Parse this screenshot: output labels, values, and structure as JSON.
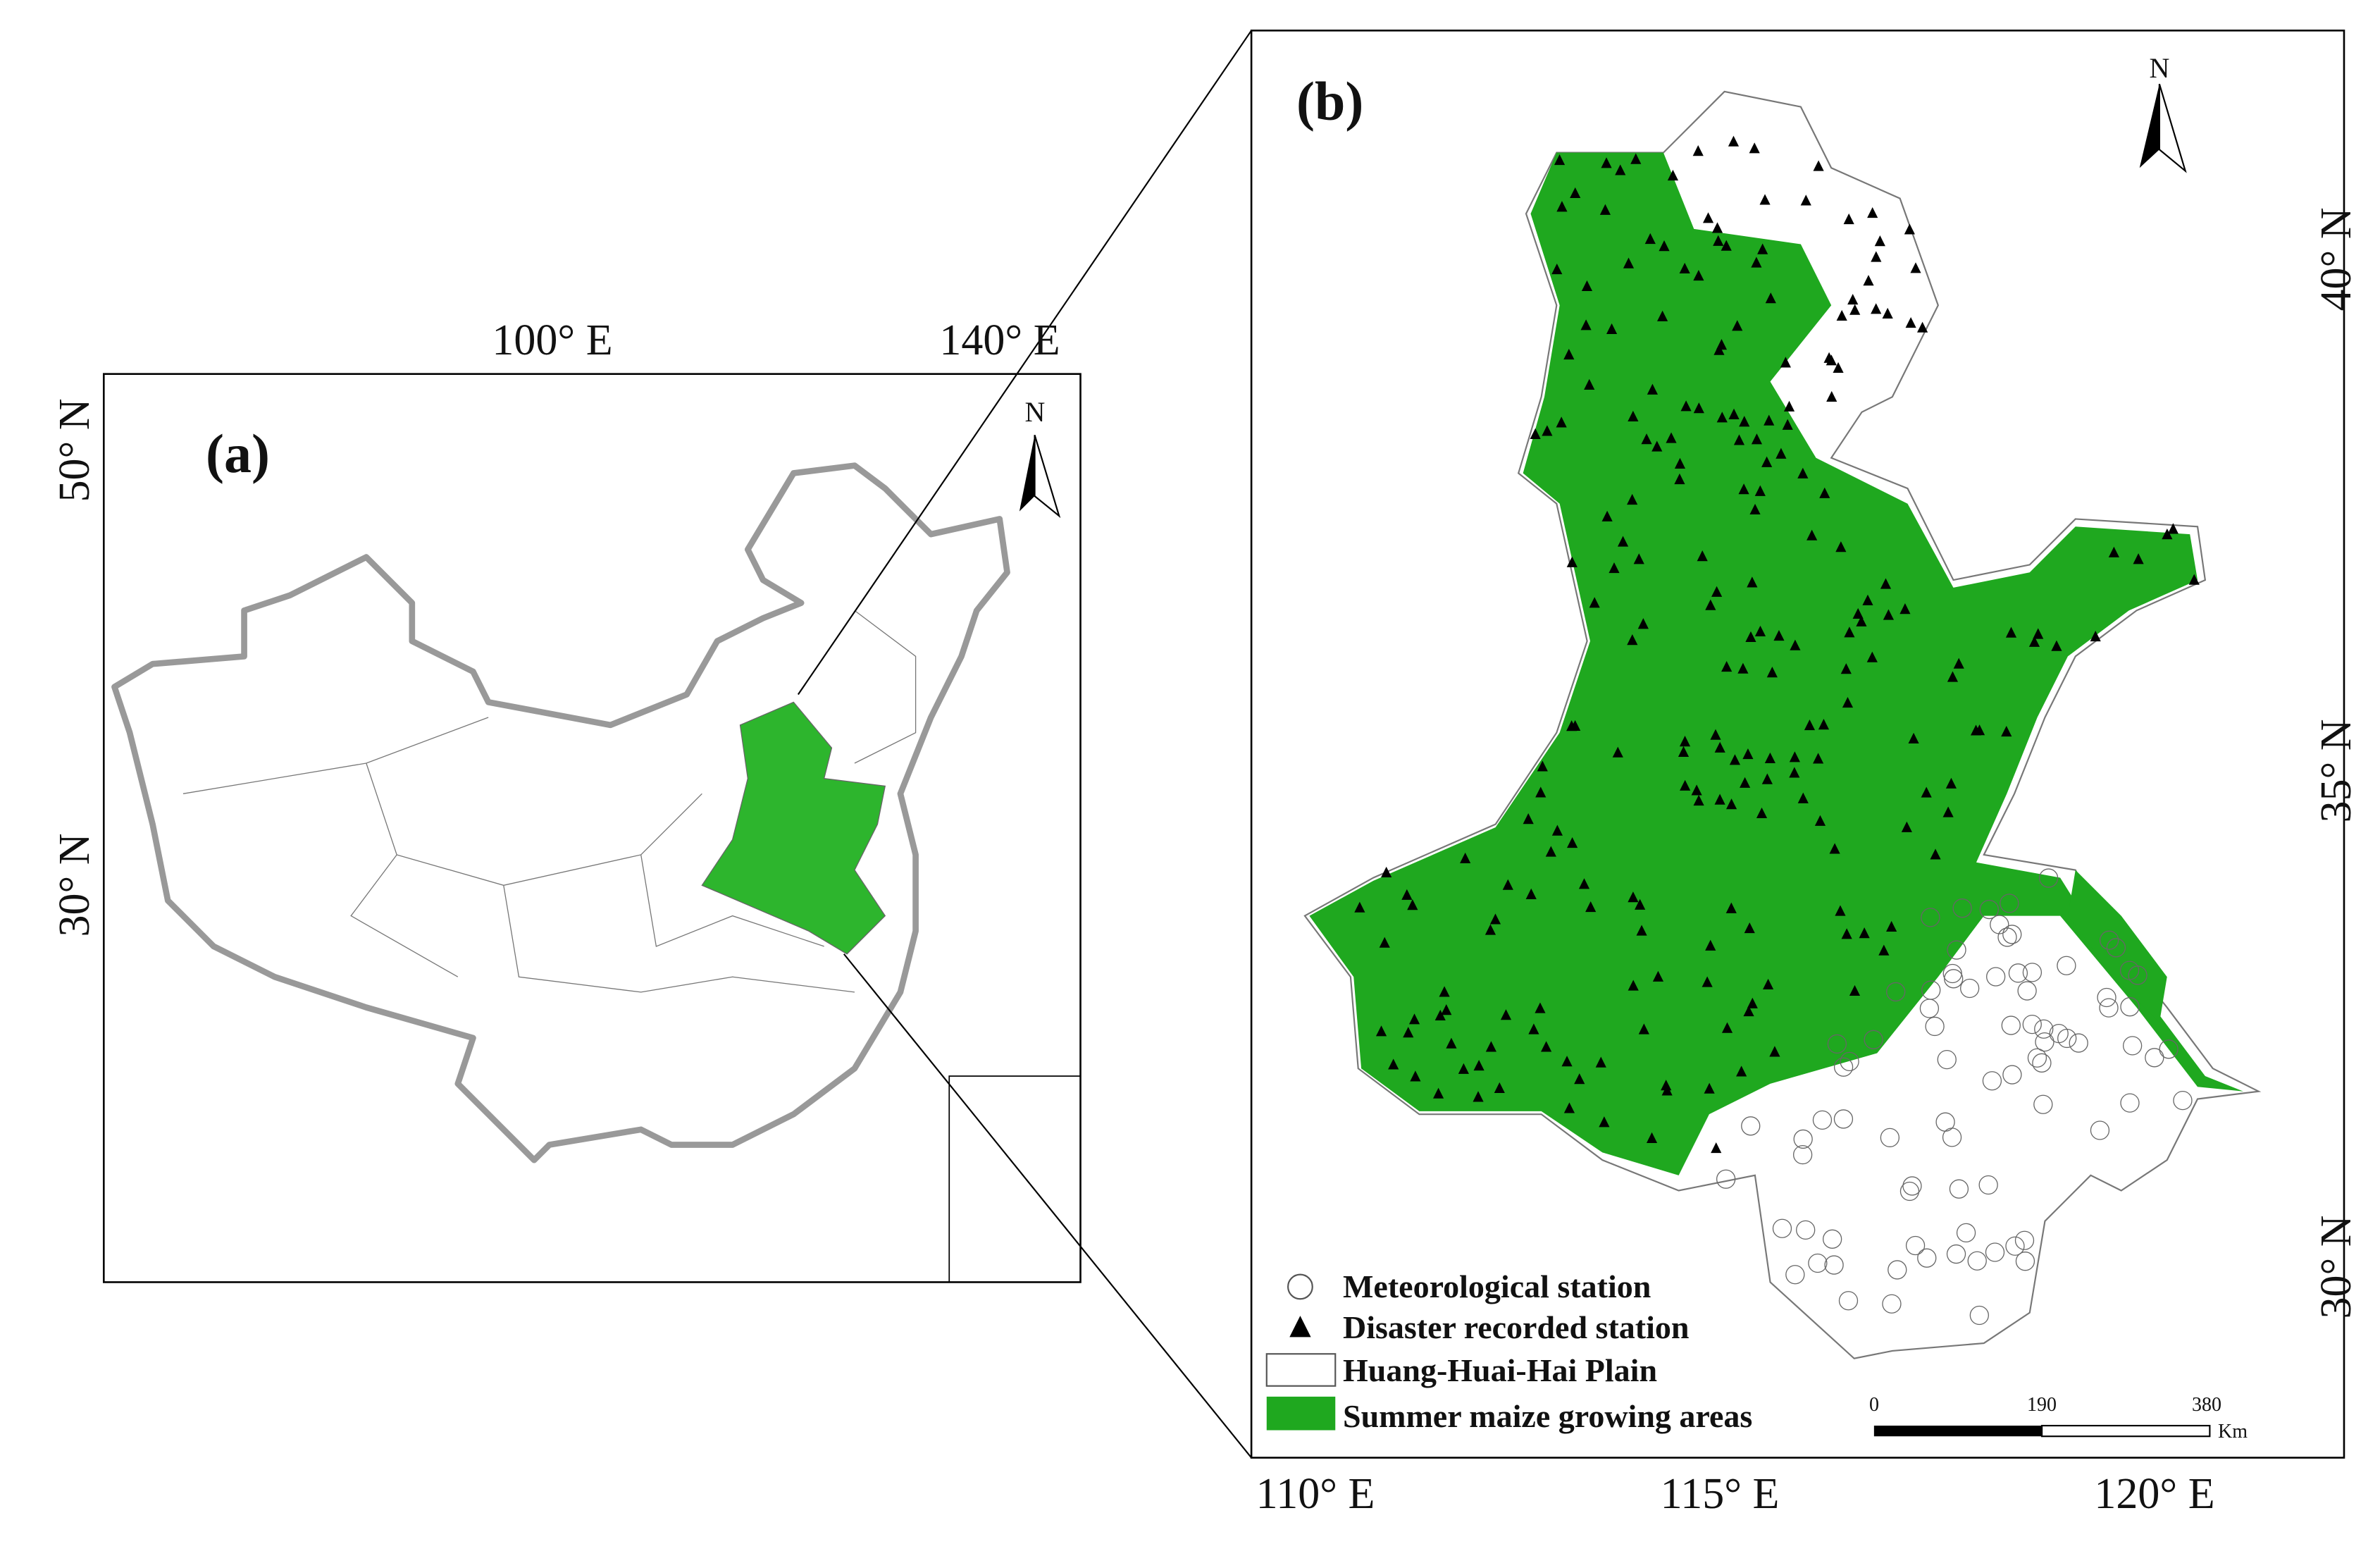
{
  "panel_a": {
    "label": "(a)",
    "x_labels": [
      "100° E",
      "140° E"
    ],
    "y_labels": [
      "50° N",
      "30° N"
    ],
    "north": "N"
  },
  "panel_b": {
    "label": "(b)",
    "x_labels": [
      "110° E",
      "115° E",
      "120° E"
    ],
    "y_labels": [
      "40° N",
      "35° N",
      "30° N"
    ],
    "north": "N",
    "legend": [
      "Meteorological station",
      "Disaster recorded station",
      "Huang-Huai-Hai Plain",
      "Summer maize growing areas"
    ],
    "scale_bar": {
      "ticks": [
        "0",
        "190",
        "380"
      ],
      "unit": "Km"
    }
  }
}
